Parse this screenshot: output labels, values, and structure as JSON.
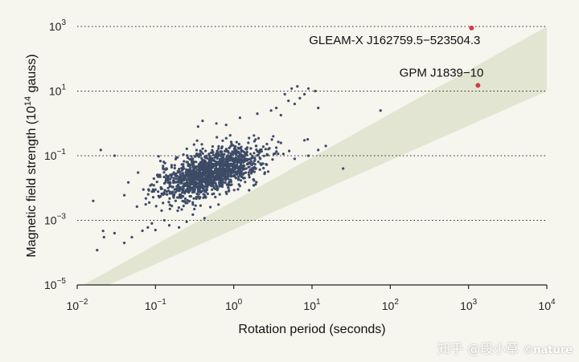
{
  "chart_data": {
    "type": "scatter",
    "title": "",
    "xlabel": "Rotation period (seconds)",
    "ylabel_parts": [
      "Magnetic field strength (10",
      "14",
      " gauss)"
    ],
    "x_scale": "log",
    "y_scale": "log",
    "xlim": [
      0.01,
      10000
    ],
    "ylim": [
      1e-05,
      1000
    ],
    "x_ticks": [
      {
        "value": 0.01,
        "base": "10",
        "exp": "−2"
      },
      {
        "value": 0.1,
        "base": "10",
        "exp": "−1"
      },
      {
        "value": 1,
        "base": "10",
        "exp": "0"
      },
      {
        "value": 10,
        "base": "10",
        "exp": "1"
      },
      {
        "value": 100,
        "base": "10",
        "exp": "2"
      },
      {
        "value": 1000,
        "base": "10",
        "exp": "3"
      },
      {
        "value": 10000,
        "base": "10",
        "exp": "4"
      }
    ],
    "y_ticks": [
      {
        "value": 1e-05,
        "base": "10",
        "exp": "−5"
      },
      {
        "value": 0.001,
        "base": "10",
        "exp": "−3"
      },
      {
        "value": 0.1,
        "base": "10",
        "exp": "−1"
      },
      {
        "value": 10,
        "base": "10",
        "exp": "1"
      },
      {
        "value": 1000,
        "base": "10",
        "exp": "3"
      }
    ],
    "y_grid": true,
    "shaded_band": {
      "lower": [
        [
          0.025,
          1e-05
        ],
        [
          10000,
          10
        ]
      ],
      "upper": [
        [
          0.012,
          1e-05
        ],
        [
          10000,
          1000
        ]
      ],
      "color": "#e3e5d3"
    },
    "highlighted_points": [
      {
        "name": "GLEAM-X J162759.5−523504.3",
        "x": 1091,
        "y": 900
      },
      {
        "name": "GPM J1839−10",
        "x": 1318,
        "y": 15
      }
    ],
    "pulsar_cluster": {
      "x_center": 0.5,
      "y_center": 0.03,
      "log_sigma_x": 0.32,
      "log_sigma_y": 0.42,
      "count": 1400,
      "seed": 7
    },
    "pulsar_outliers": [
      [
        0.016,
        0.004
      ],
      [
        0.018,
        0.00012
      ],
      [
        0.022,
        0.0003
      ],
      [
        0.03,
        0.0004
      ],
      [
        0.04,
        0.0002
      ],
      [
        0.05,
        0.0003
      ],
      [
        0.04,
        0.006
      ],
      [
        0.045,
        0.015
      ],
      [
        0.06,
        0.03
      ],
      [
        0.07,
        0.009
      ],
      [
        0.08,
        0.0006
      ],
      [
        0.09,
        0.0008
      ],
      [
        0.1,
        0.0005
      ],
      [
        0.12,
        0.002
      ],
      [
        0.13,
        0.001
      ],
      [
        0.15,
        0.0007
      ],
      [
        0.2,
        0.0006
      ],
      [
        0.25,
        0.0009
      ],
      [
        0.3,
        0.0015
      ],
      [
        0.35,
        0.8
      ],
      [
        0.4,
        1.2
      ],
      [
        0.6,
        1.0
      ],
      [
        0.8,
        0.9
      ],
      [
        1.2,
        1.5
      ],
      [
        2.0,
        2.0
      ],
      [
        3.0,
        2.5
      ],
      [
        3.5,
        3.0
      ],
      [
        4.0,
        1.8
      ],
      [
        5.0,
        5.0
      ],
      [
        6.0,
        4.0
      ],
      [
        7.0,
        6.0
      ],
      [
        8.0,
        8.0
      ],
      [
        9.0,
        12
      ],
      [
        11,
        10
      ],
      [
        12,
        3
      ],
      [
        4.5,
        8
      ],
      [
        5.5,
        12
      ],
      [
        6.5,
        14
      ],
      [
        3.2,
        0.4
      ],
      [
        4.0,
        0.25
      ],
      [
        8.0,
        0.3
      ],
      [
        12,
        0.15
      ],
      [
        25,
        0.04
      ],
      [
        75,
        2.5
      ],
      [
        2.5,
        0.03
      ],
      [
        6.0,
        0.08
      ],
      [
        9.0,
        0.1
      ],
      [
        15,
        0.2
      ],
      [
        0.02,
        0.15
      ],
      [
        0.03,
        0.1
      ]
    ],
    "colors": {
      "pulsar": "#3d4b66",
      "highlight": "#d23c47",
      "band": "#e3e5d3"
    }
  },
  "watermark": {
    "text": "知乎 @段小草",
    "brand": "©nature"
  }
}
